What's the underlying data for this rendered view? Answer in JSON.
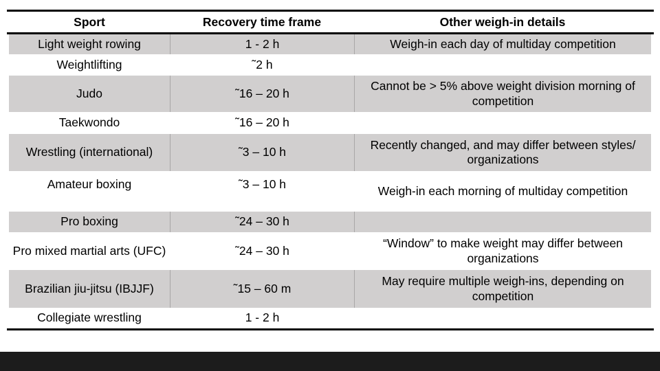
{
  "header": {
    "columns": [
      "Sport",
      "Recovery time frame",
      "Other weigh-in details"
    ]
  },
  "table": {
    "rows": [
      {
        "sport": "Light weight rowing",
        "recovery": "1 - 2 h",
        "details": "Weigh-in each day of multiday competition"
      },
      {
        "sport": "Weightlifting",
        "recovery": "˜2 h",
        "details": ""
      },
      {
        "sport": "Judo",
        "recovery": "˜16 – 20 h",
        "details": "Cannot be > 5% above weight division morning of competition"
      },
      {
        "sport": "Taekwondo",
        "recovery": "˜16 – 20 h",
        "details": ""
      },
      {
        "sport": "Wrestling (international)",
        "recovery": "˜3 – 10 h",
        "details": "Recently changed, and may differ between styles/ organizations"
      },
      {
        "sport": "Amateur boxing",
        "recovery": "˜3 – 10 h",
        "details": "Weigh-in each morning of multiday competition"
      },
      {
        "sport": "Pro boxing",
        "recovery": "˜24 – 30 h",
        "details": ""
      },
      {
        "sport": "Pro mixed martial arts (UFC)",
        "recovery": "˜24 – 30 h",
        "details": "“Window” to make weight may differ between organizations"
      },
      {
        "sport": "Brazilian jiu-jitsu (IBJJF)",
        "recovery": "˜15 – 60 m",
        "details": "May require multiple weigh-ins, depending on competition"
      },
      {
        "sport": "Collegiate wrestling",
        "recovery": "1 - 2 h",
        "details": ""
      }
    ]
  },
  "colors": {
    "row_gray": "#d1cfcf",
    "cell_divider": "#a8a6a6",
    "table_rule": "#000000",
    "bottom_bar": "#1c1c1c"
  }
}
